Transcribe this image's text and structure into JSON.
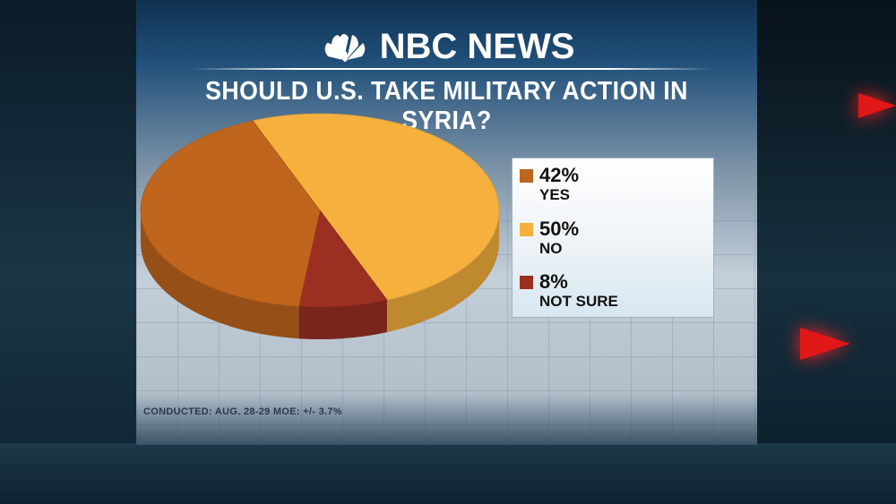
{
  "brand": {
    "name": "NBC NEWS",
    "logo_icon": "peacock-icon"
  },
  "chart_data": {
    "type": "pie",
    "title": "SHOULD U.S. TAKE MILITARY ACTION IN SYRIA?",
    "slices": [
      {
        "label": "YES",
        "value": 42,
        "display": "42%",
        "color": "#c0651d"
      },
      {
        "label": "NO",
        "value": 50,
        "display": "50%",
        "color": "#f5b03e"
      },
      {
        "label": "NOT SURE",
        "value": 8,
        "display": "8%",
        "color": "#9b2f22"
      }
    ],
    "legend_position": "right"
  },
  "footer": {
    "note": "CONDUCTED: AUG. 28-29   MOE: +/- 3.7%"
  }
}
